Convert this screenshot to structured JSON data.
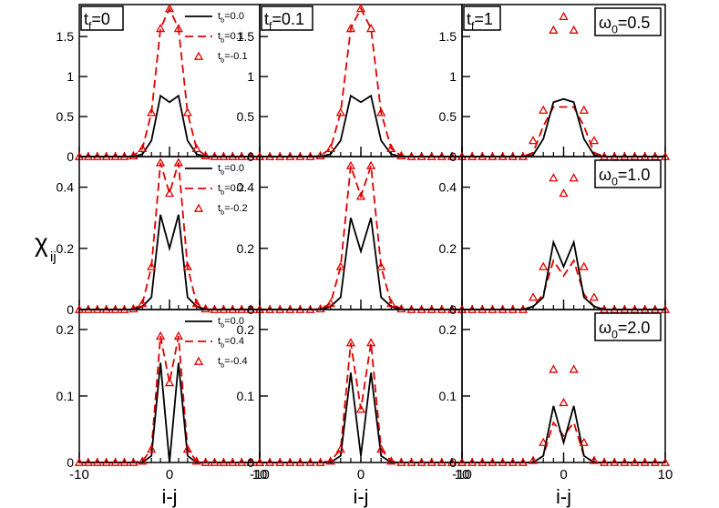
{
  "chart_data": {
    "type": "line",
    "title": "",
    "ylabel": "χ",
    "ylabel_sub": "ij",
    "xlabel": "i-j",
    "xlim": [
      -10,
      10
    ],
    "xticks": [
      -10,
      0,
      10
    ],
    "x": [
      -10,
      -9,
      -8,
      -7,
      -6,
      -5,
      -4,
      -3,
      -2,
      -1,
      0,
      1,
      2,
      3,
      4,
      5,
      6,
      7,
      8,
      9,
      10
    ],
    "columns": [
      {
        "tf_main": "t",
        "tf_sub": "f",
        "tf_val": "=0"
      },
      {
        "tf_main": "t",
        "tf_sub": "f",
        "tf_val": "=0.1"
      },
      {
        "tf_main": "t",
        "tf_sub": "f",
        "tf_val": "=1"
      }
    ],
    "rows": [
      {
        "omega_main": "ω",
        "omega_sub": "0",
        "omega_val": "=0.5",
        "ylim": [
          0,
          1.9
        ],
        "yticks": [
          "0",
          "0.5",
          "1",
          "1.5"
        ],
        "ytick_values": [
          0,
          0.5,
          1,
          1.5
        ],
        "legend": [
          {
            "main": "t",
            "sub": "b",
            "val": "=0.0"
          },
          {
            "main": "t",
            "sub": "b",
            "val": "=0.1"
          },
          {
            "main": "t",
            "sub": "b",
            "val": "=-0.1"
          }
        ],
        "panels": [
          {
            "solid": [
              0,
              0,
              0,
              0,
              0,
              0,
              0,
              0.03,
              0.2,
              0.76,
              0.68,
              0.76,
              0.2,
              0.03,
              0,
              0,
              0,
              0,
              0,
              0,
              0
            ],
            "dashed": [
              0,
              0,
              0,
              0,
              0,
              0,
              0.01,
              0.1,
              0.55,
              1.6,
              1.85,
              1.6,
              0.55,
              0.1,
              0.01,
              0,
              0,
              0,
              0,
              0,
              0
            ],
            "tri": [
              0,
              0,
              0,
              0,
              0,
              0,
              0.01,
              0.1,
              0.55,
              1.6,
              1.85,
              1.6,
              0.55,
              0.1,
              0.01,
              0,
              0,
              0,
              0,
              0,
              0
            ]
          },
          {
            "solid": [
              0,
              0,
              0,
              0,
              0,
              0,
              0,
              0.03,
              0.2,
              0.76,
              0.68,
              0.76,
              0.2,
              0.03,
              0,
              0,
              0,
              0,
              0,
              0,
              0
            ],
            "dashed": [
              0,
              0,
              0,
              0,
              0,
              0,
              0.01,
              0.1,
              0.55,
              1.6,
              1.85,
              1.6,
              0.55,
              0.1,
              0.01,
              0,
              0,
              0,
              0,
              0,
              0
            ],
            "tri": [
              0,
              0,
              0,
              0,
              0,
              0,
              0.01,
              0.1,
              0.55,
              1.6,
              1.85,
              1.6,
              0.55,
              0.1,
              0.01,
              0,
              0,
              0,
              0,
              0,
              0
            ]
          },
          {
            "solid": [
              0,
              0,
              0,
              0,
              0,
              0,
              0,
              0.02,
              0.22,
              0.68,
              0.72,
              0.68,
              0.22,
              0.02,
              0,
              0,
              0,
              0,
              0,
              0,
              0
            ],
            "dashed": [
              0,
              0,
              0,
              0,
              0,
              0,
              0,
              0.05,
              0.38,
              0.62,
              0.62,
              0.62,
              0.38,
              0.05,
              0,
              0,
              0,
              0,
              0,
              0,
              0
            ],
            "tri": [
              0,
              0,
              0,
              0,
              0,
              0,
              0,
              0.2,
              0.58,
              1.58,
              1.75,
              1.58,
              0.58,
              0.2,
              0,
              0,
              0,
              0,
              0,
              0,
              0
            ]
          }
        ]
      },
      {
        "omega_main": "ω",
        "omega_sub": "0",
        "omega_val": "=1.0",
        "ylim": [
          0,
          0.5
        ],
        "yticks": [
          "0",
          "0.2",
          "0.4"
        ],
        "ytick_values": [
          0,
          0.2,
          0.4
        ],
        "legend": [
          {
            "main": "t",
            "sub": "b",
            "val": "=0.0"
          },
          {
            "main": "t",
            "sub": "b",
            "val": "=0.2"
          },
          {
            "main": "t",
            "sub": "b",
            "val": "=-0.2"
          }
        ],
        "panels": [
          {
            "solid": [
              0,
              0,
              0,
              0,
              0,
              0,
              0,
              0.01,
              0.04,
              0.31,
              0.2,
              0.31,
              0.04,
              0.01,
              0,
              0,
              0,
              0,
              0,
              0,
              0
            ],
            "dashed": [
              0,
              0,
              0,
              0,
              0,
              0,
              0.002,
              0.02,
              0.14,
              0.48,
              0.38,
              0.48,
              0.14,
              0.02,
              0.002,
              0,
              0,
              0,
              0,
              0,
              0
            ],
            "tri": [
              0,
              0,
              0,
              0,
              0,
              0,
              0.002,
              0.02,
              0.14,
              0.48,
              0.38,
              0.48,
              0.14,
              0.02,
              0.002,
              0,
              0,
              0,
              0,
              0,
              0
            ]
          },
          {
            "solid": [
              0,
              0,
              0,
              0,
              0,
              0,
              0,
              0.01,
              0.04,
              0.3,
              0.19,
              0.3,
              0.04,
              0.01,
              0,
              0,
              0,
              0,
              0,
              0,
              0
            ],
            "dashed": [
              0,
              0,
              0,
              0,
              0,
              0,
              0.002,
              0.02,
              0.14,
              0.47,
              0.37,
              0.47,
              0.14,
              0.02,
              0.002,
              0,
              0,
              0,
              0,
              0,
              0
            ],
            "tri": [
              0,
              0,
              0,
              0,
              0,
              0,
              0.002,
              0.02,
              0.14,
              0.47,
              0.37,
              0.47,
              0.14,
              0.02,
              0.002,
              0,
              0,
              0,
              0,
              0,
              0
            ]
          },
          {
            "solid": [
              0,
              0,
              0,
              0,
              0,
              0,
              0,
              0.01,
              0.04,
              0.22,
              0.14,
              0.22,
              0.04,
              0.01,
              0,
              0,
              0,
              0,
              0,
              0,
              0
            ],
            "dashed": [
              0,
              0,
              0,
              0,
              0,
              0,
              0,
              0.01,
              0.05,
              0.16,
              0.11,
              0.16,
              0.05,
              0.01,
              0,
              0,
              0,
              0,
              0,
              0,
              0
            ],
            "tri": [
              0,
              0,
              0,
              0,
              0,
              0,
              0,
              0.04,
              0.14,
              0.43,
              0.38,
              0.43,
              0.14,
              0.04,
              0,
              0,
              0,
              0,
              0,
              0,
              0
            ]
          }
        ]
      },
      {
        "omega_main": "ω",
        "omega_sub": "0",
        "omega_val": "=2.0",
        "ylim": [
          0,
          0.23
        ],
        "yticks": [
          "0",
          "0.1",
          "0.2"
        ],
        "ytick_values": [
          0,
          0.1,
          0.2
        ],
        "legend": [
          {
            "main": "t",
            "sub": "b",
            "val": "=0.0"
          },
          {
            "main": "t",
            "sub": "b",
            "val": "=0.4"
          },
          {
            "main": "t",
            "sub": "b",
            "val": "=-0.4"
          }
        ],
        "panels": [
          {
            "solid": [
              0,
              0,
              0,
              0,
              0,
              0,
              0,
              0,
              0.01,
              0.15,
              0,
              0.15,
              0.01,
              0,
              0,
              0,
              0,
              0,
              0,
              0,
              0
            ],
            "dashed": [
              0,
              0,
              0,
              0,
              0,
              0,
              0,
              0.002,
              0.02,
              0.19,
              0.12,
              0.19,
              0.02,
              0.002,
              0,
              0,
              0,
              0,
              0,
              0,
              0
            ],
            "tri": [
              0,
              0,
              0,
              0,
              0,
              0,
              0,
              0.002,
              0.02,
              0.19,
              0.12,
              0.19,
              0.02,
              0.002,
              0,
              0,
              0,
              0,
              0,
              0,
              0
            ]
          },
          {
            "solid": [
              0,
              0,
              0,
              0,
              0,
              0,
              0,
              0,
              0.01,
              0.135,
              0.01,
              0.135,
              0.01,
              0,
              0,
              0,
              0,
              0,
              0,
              0,
              0
            ],
            "dashed": [
              0,
              0,
              0,
              0,
              0,
              0,
              0,
              0.002,
              0.02,
              0.18,
              0.08,
              0.18,
              0.02,
              0.002,
              0,
              0,
              0,
              0,
              0,
              0,
              0
            ],
            "tri": [
              0,
              0,
              0,
              0,
              0,
              0,
              0,
              0.002,
              0.02,
              0.18,
              0.08,
              0.18,
              0.02,
              0.002,
              0,
              0,
              0,
              0,
              0,
              0,
              0
            ]
          },
          {
            "solid": [
              0,
              0,
              0,
              0,
              0,
              0,
              0,
              0,
              0.01,
              0.085,
              0.03,
              0.085,
              0.01,
              0,
              0,
              0,
              0,
              0,
              0,
              0,
              0
            ],
            "dashed": [
              0,
              0,
              0,
              0,
              0,
              0,
              0,
              0,
              0.01,
              0.06,
              0.04,
              0.06,
              0.01,
              0,
              0,
              0,
              0,
              0,
              0,
              0,
              0
            ],
            "tri": [
              0,
              0,
              0,
              0,
              0,
              0,
              0,
              0.003,
              0.03,
              0.14,
              0.09,
              0.14,
              0.03,
              0.003,
              0,
              0,
              0,
              0,
              0,
              0,
              0
            ]
          }
        ]
      }
    ],
    "series_styles": {
      "solid": "#000000",
      "dashed": "#e00000",
      "tri": "#e00000"
    }
  }
}
